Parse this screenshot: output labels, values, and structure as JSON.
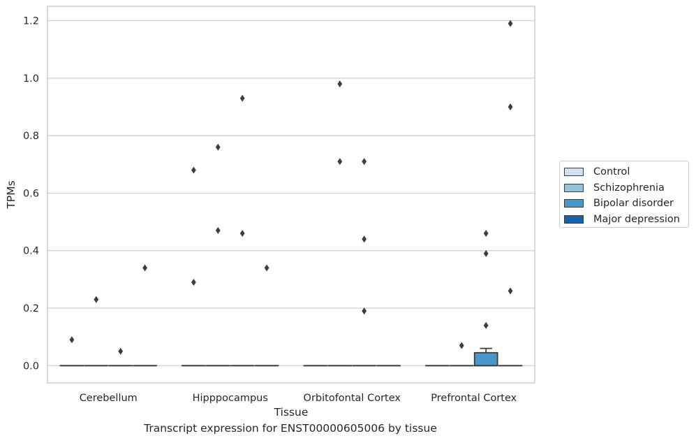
{
  "chart_data": {
    "type": "box",
    "xlabel": "Tissue",
    "ylabel": "TPMs",
    "categories": [
      "Cerebellum",
      "Hipppocampus",
      "Orbitofontal Cortex",
      "Prefrontal Cortex"
    ],
    "ylim": [
      -0.06,
      1.25
    ],
    "yticks": [
      "0.0",
      "0.2",
      "0.4",
      "0.6",
      "0.8",
      "1.0",
      "1.2"
    ],
    "grid": true,
    "legend_placement": "right",
    "series": [
      {
        "name": "Control",
        "color": "#cfe1f2",
        "boxes": [
          {
            "category": "Cerebellum",
            "q1": 0,
            "median": 0,
            "q3": 0,
            "whisker_low": 0,
            "whisker_high": 0,
            "outliers": [
              0.09
            ]
          },
          {
            "category": "Hipppocampus",
            "q1": 0,
            "median": 0,
            "q3": 0,
            "whisker_low": 0,
            "whisker_high": 0,
            "outliers": [
              0.68,
              0.29
            ]
          },
          {
            "category": "Orbitofontal Cortex",
            "q1": 0,
            "median": 0,
            "q3": 0,
            "whisker_low": 0,
            "whisker_high": 0,
            "outliers": []
          },
          {
            "category": "Prefrontal Cortex",
            "q1": 0,
            "median": 0,
            "q3": 0,
            "whisker_low": 0,
            "whisker_high": 0,
            "outliers": []
          }
        ]
      },
      {
        "name": "Schizophrenia",
        "color": "#93c4de",
        "boxes": [
          {
            "category": "Cerebellum",
            "q1": 0,
            "median": 0,
            "q3": 0,
            "whisker_low": 0,
            "whisker_high": 0,
            "outliers": [
              0.23
            ]
          },
          {
            "category": "Hipppocampus",
            "q1": 0,
            "median": 0,
            "q3": 0,
            "whisker_low": 0,
            "whisker_high": 0,
            "outliers": [
              0.76,
              0.47
            ]
          },
          {
            "category": "Orbitofontal Cortex",
            "q1": 0,
            "median": 0,
            "q3": 0,
            "whisker_low": 0,
            "whisker_high": 0,
            "outliers": [
              0.98,
              0.71
            ]
          },
          {
            "category": "Prefrontal Cortex",
            "q1": 0,
            "median": 0,
            "q3": 0,
            "whisker_low": 0,
            "whisker_high": 0,
            "outliers": [
              0.07
            ]
          }
        ]
      },
      {
        "name": "Bipolar disorder",
        "color": "#4a98c9",
        "boxes": [
          {
            "category": "Cerebellum",
            "q1": 0,
            "median": 0,
            "q3": 0,
            "whisker_low": 0,
            "whisker_high": 0,
            "outliers": [
              0.05
            ]
          },
          {
            "category": "Hipppocampus",
            "q1": 0,
            "median": 0,
            "q3": 0,
            "whisker_low": 0,
            "whisker_high": 0,
            "outliers": [
              0.93,
              0.46
            ]
          },
          {
            "category": "Orbitofontal Cortex",
            "q1": 0,
            "median": 0,
            "q3": 0,
            "whisker_low": 0,
            "whisker_high": 0,
            "outliers": [
              0.71,
              0.44,
              0.19
            ]
          },
          {
            "category": "Prefrontal Cortex",
            "q1": 0,
            "median": 0,
            "q3": 0.045,
            "whisker_low": 0,
            "whisker_high": 0.06,
            "outliers": [
              0.46,
              0.39,
              0.14
            ]
          }
        ]
      },
      {
        "name": "Major depression",
        "color": "#1764ab",
        "boxes": [
          {
            "category": "Cerebellum",
            "q1": 0,
            "median": 0,
            "q3": 0,
            "whisker_low": 0,
            "whisker_high": 0,
            "outliers": [
              0.34
            ]
          },
          {
            "category": "Hipppocampus",
            "q1": 0,
            "median": 0,
            "q3": 0,
            "whisker_low": 0,
            "whisker_high": 0,
            "outliers": [
              0.34
            ]
          },
          {
            "category": "Orbitofontal Cortex",
            "q1": 0,
            "median": 0,
            "q3": 0,
            "whisker_low": 0,
            "whisker_high": 0,
            "outliers": []
          },
          {
            "category": "Prefrontal Cortex",
            "q1": 0,
            "median": 0,
            "q3": 0,
            "whisker_low": 0,
            "whisker_high": 0,
            "outliers": [
              1.19,
              0.9,
              0.26
            ]
          }
        ]
      }
    ]
  },
  "caption": "Transcript expression for ENST00000605006 by tissue",
  "legend": {
    "items": [
      {
        "label": "Control",
        "color": "#cfe1f2"
      },
      {
        "label": "Schizophrenia",
        "color": "#93c4de"
      },
      {
        "label": "Bipolar disorder",
        "color": "#4a98c9"
      },
      {
        "label": "Major depression",
        "color": "#1764ab"
      }
    ]
  }
}
